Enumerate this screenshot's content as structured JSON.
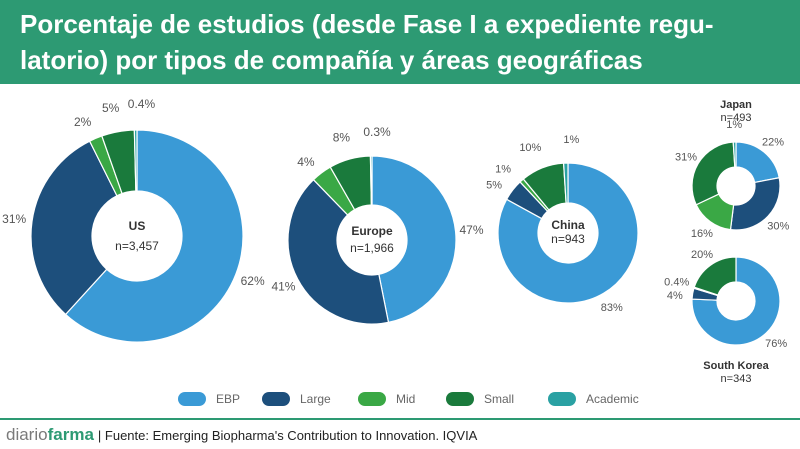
{
  "header": {
    "title_line1": "Porcentaje de estudios (desde Fase I a expediente regu-",
    "title_line2": "latorio) por tipos de compañía y áreas geográficas"
  },
  "colors": {
    "header_bg": "#2d9a73",
    "EBP": "#3a9ad6",
    "Large": "#1d4f7c",
    "Mid": "#3aa845",
    "Small": "#1a7a3c",
    "Academic": "#2aa1a3"
  },
  "chart_data": {
    "type": "pie",
    "variant": "donut",
    "title": "Porcentaje de estudios (desde Fase I a expediente regulatorio) por tipos de compañía y áreas geográficas",
    "categories": [
      "EBP",
      "Large",
      "Mid",
      "Small",
      "Academic"
    ],
    "charts": [
      {
        "name": "US",
        "n_label": "n=3,457",
        "values": [
          62,
          31,
          2,
          5,
          0.4
        ],
        "labels": [
          "62%",
          "31%",
          "2%",
          "5%",
          "0.4%"
        ]
      },
      {
        "name": "Europe",
        "n_label": "n=1,966",
        "values": [
          47,
          41,
          4,
          8,
          0.3
        ],
        "labels": [
          "47%",
          "41%",
          "4%",
          "8%",
          "0.3%"
        ]
      },
      {
        "name": "China",
        "n_label": "n=943",
        "values": [
          83,
          5,
          1,
          10,
          1
        ],
        "labels": [
          "83%",
          "5%",
          "1%",
          "10%",
          "1%"
        ]
      },
      {
        "name": "Japan",
        "n_label": "n=493",
        "values": [
          22,
          30,
          16,
          31,
          1
        ],
        "labels": [
          "22%",
          "30%",
          "16%",
          "31%",
          "1%"
        ]
      },
      {
        "name": "South Korea",
        "n_label": "n=343",
        "values": [
          76,
          4,
          0.4,
          20,
          0
        ],
        "labels": [
          "76%",
          "4%",
          "0.4%",
          "20%",
          ""
        ]
      }
    ]
  },
  "legend": {
    "items": [
      "EBP",
      "Large",
      "Mid",
      "Small",
      "Academic"
    ]
  },
  "footer": {
    "brand_part1": "diario",
    "brand_part2": "farma",
    "source": "| Fuente: Emerging Biopharma's Contribution to Innovation. IQVIA"
  }
}
